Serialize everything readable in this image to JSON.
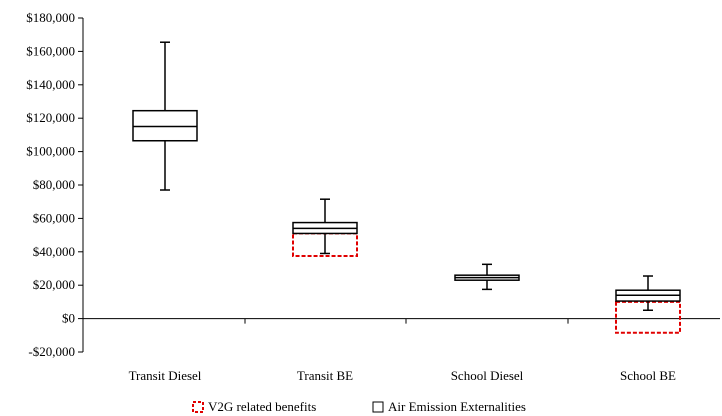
{
  "chart_data": {
    "type": "box",
    "categories": [
      "Transit Diesel",
      "Transit BE",
      "School Diesel",
      "School BE"
    ],
    "ylim": [
      -20000,
      180000
    ],
    "yticks": [
      -20000,
      0,
      20000,
      40000,
      60000,
      80000,
      100000,
      120000,
      140000,
      160000,
      180000
    ],
    "ytick_labels": [
      "-$20,000",
      "$0",
      "$20,000",
      "$40,000",
      "$60,000",
      "$80,000",
      "$100,000",
      "$120,000",
      "$140,000",
      "$160,000",
      "$180,000"
    ],
    "series": [
      {
        "name": "Air Emission Externalities",
        "color": "#000000",
        "boxes": [
          {
            "category": "Transit Diesel",
            "min": 77000,
            "q1": 106500,
            "median": 115000,
            "q3": 124500,
            "max": 165500
          },
          {
            "category": "Transit BE",
            "min": 39000,
            "q1": 51000,
            "median": 54000,
            "q3": 57500,
            "max": 71500
          },
          {
            "category": "School Diesel",
            "min": 17500,
            "q1": 23000,
            "median": 24500,
            "q3": 26000,
            "max": 32500
          },
          {
            "category": "School BE",
            "min": 5000,
            "q1": 10500,
            "median": 14000,
            "q3": 17000,
            "max": 25500
          }
        ]
      },
      {
        "name": "V2G related benefits",
        "color": "#e00000",
        "ranges": [
          {
            "category": "Transit BE",
            "low": 37500,
            "high": 51000
          },
          {
            "category": "School BE",
            "low": -8500,
            "high": 10000
          }
        ]
      }
    ],
    "legend": [
      "V2G related benefits",
      "Air Emission Externalities"
    ],
    "legend_position": "bottom"
  }
}
